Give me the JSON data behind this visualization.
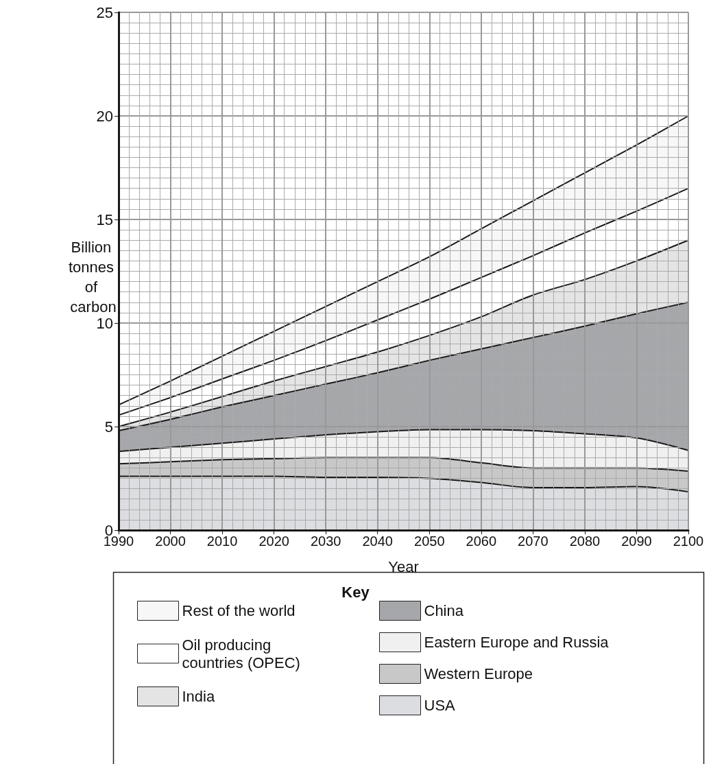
{
  "chart_data": {
    "type": "area",
    "stacked": true,
    "xlabel": "Year",
    "ylabel": "Billion tonnes of carbon",
    "legend_title": "Key",
    "x": [
      1990,
      2000,
      2010,
      2020,
      2030,
      2040,
      2050,
      2060,
      2070,
      2080,
      2090,
      2100
    ],
    "xlim": [
      1990,
      2100
    ],
    "xticks": [
      1990,
      2000,
      2010,
      2020,
      2030,
      2040,
      2050,
      2060,
      2070,
      2080,
      2090,
      2100
    ],
    "ylim": [
      0,
      25
    ],
    "yticks": [
      0,
      5,
      10,
      15,
      20,
      25
    ],
    "grid": true,
    "legend": "bottom",
    "marker": "none",
    "line_style": "solid",
    "series": [
      {
        "name": "USA",
        "color": "#dcdde0",
        "values": [
          2.6,
          2.6,
          2.6,
          2.6,
          2.55,
          2.55,
          2.5,
          2.3,
          2.05,
          2.05,
          2.1,
          1.85
        ]
      },
      {
        "name": "Western Europe",
        "color": "#c8c8c8",
        "values": [
          0.6,
          0.7,
          0.8,
          0.85,
          0.95,
          0.95,
          1.0,
          0.95,
          0.95,
          0.95,
          0.9,
          1.0
        ]
      },
      {
        "name": "Eastern Europe and Russia",
        "color": "#f0f0f0",
        "values": [
          0.6,
          0.7,
          0.8,
          0.95,
          1.1,
          1.25,
          1.35,
          1.6,
          1.8,
          1.65,
          1.45,
          1.0
        ]
      },
      {
        "name": "China",
        "color": "#a6a7ab",
        "values": [
          1.0,
          1.35,
          1.75,
          2.1,
          2.45,
          2.85,
          3.35,
          3.9,
          4.5,
          5.2,
          6.0,
          7.15
        ]
      },
      {
        "name": "India",
        "color": "#e4e4e4",
        "values": [
          0.2,
          0.35,
          0.5,
          0.7,
          0.85,
          1.0,
          1.2,
          1.55,
          2.05,
          2.25,
          2.55,
          3.0
        ]
      },
      {
        "name": "Oil producing countries (OPEC)",
        "color": "#ffffff",
        "values": [
          0.55,
          0.7,
          0.85,
          1.0,
          1.25,
          1.55,
          1.75,
          1.9,
          1.9,
          2.25,
          2.4,
          2.5
        ]
      },
      {
        "name": "Rest of the world",
        "color": "#f7f7f7",
        "values": [
          0.5,
          0.8,
          1.1,
          1.4,
          1.65,
          1.85,
          2.05,
          2.35,
          2.65,
          2.9,
          3.2,
          3.5
        ]
      }
    ]
  }
}
